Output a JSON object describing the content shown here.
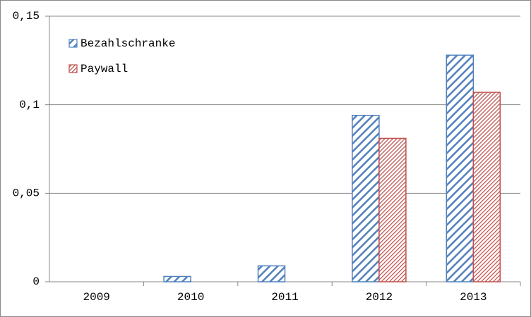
{
  "chart_data": {
    "type": "bar",
    "categories": [
      "2009",
      "2010",
      "2011",
      "2012",
      "2013"
    ],
    "series": [
      {
        "name": "Bezahlschranke",
        "color": "#4f81bd",
        "values": [
          0,
          0.003,
          0.009,
          0.094,
          0.128
        ]
      },
      {
        "name": "Paywall",
        "color": "#c0504d",
        "values": [
          0,
          0,
          0,
          0.081,
          0.107
        ]
      }
    ],
    "ylim": [
      0,
      0.15
    ],
    "yticks": [
      0,
      {
        "value": 0.05,
        "label": "0,05"
      },
      {
        "value": 0.1,
        "label": "0,1"
      },
      {
        "value": 0.15,
        "label": "0,15"
      }
    ],
    "grid": true,
    "legend": "top-left"
  }
}
